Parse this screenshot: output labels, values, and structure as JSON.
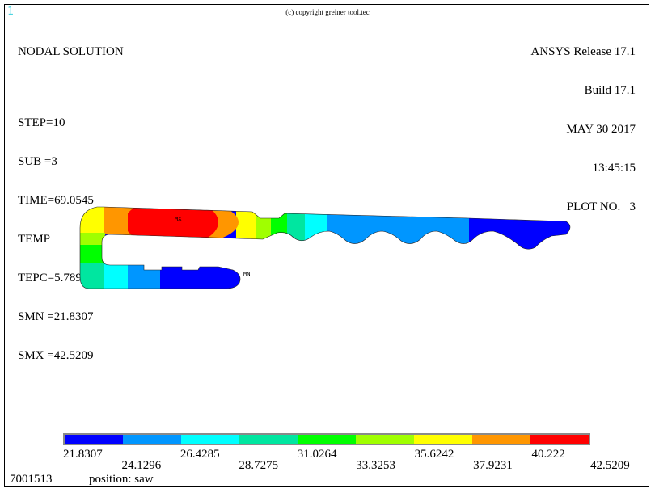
{
  "window_number": "1",
  "copyright": "(c) copyright greiner tool.tec",
  "solution": {
    "title": "NODAL SOLUTION",
    "step": "STEP=10",
    "sub": "SUB =3",
    "time": "TIME=69.0545",
    "item": "TEMP",
    "tepc": "TEPC=5.78954",
    "smn": "SMN =21.8307",
    "smx": "SMX =42.5209"
  },
  "release": {
    "product": "ANSYS Release 17.1",
    "build": "Build 17.1",
    "date": "MAY 30 2017",
    "time": "13:45:15",
    "plot": "PLOT NO.   3"
  },
  "markers": {
    "max": "MX",
    "min": "MN"
  },
  "legend": {
    "colors": [
      "#0000ff",
      "#0096ff",
      "#00ffff",
      "#00e6a0",
      "#00ff00",
      "#a0ff00",
      "#ffff00",
      "#ff9600",
      "#ff0000"
    ],
    "ticks": [
      "21.8307",
      "24.1296",
      "26.4285",
      "28.7275",
      "31.0264",
      "33.3253",
      "35.6242",
      "37.9231",
      "40.222",
      "42.5209"
    ]
  },
  "footer": {
    "id": "7001513",
    "position": "position: saw"
  }
}
